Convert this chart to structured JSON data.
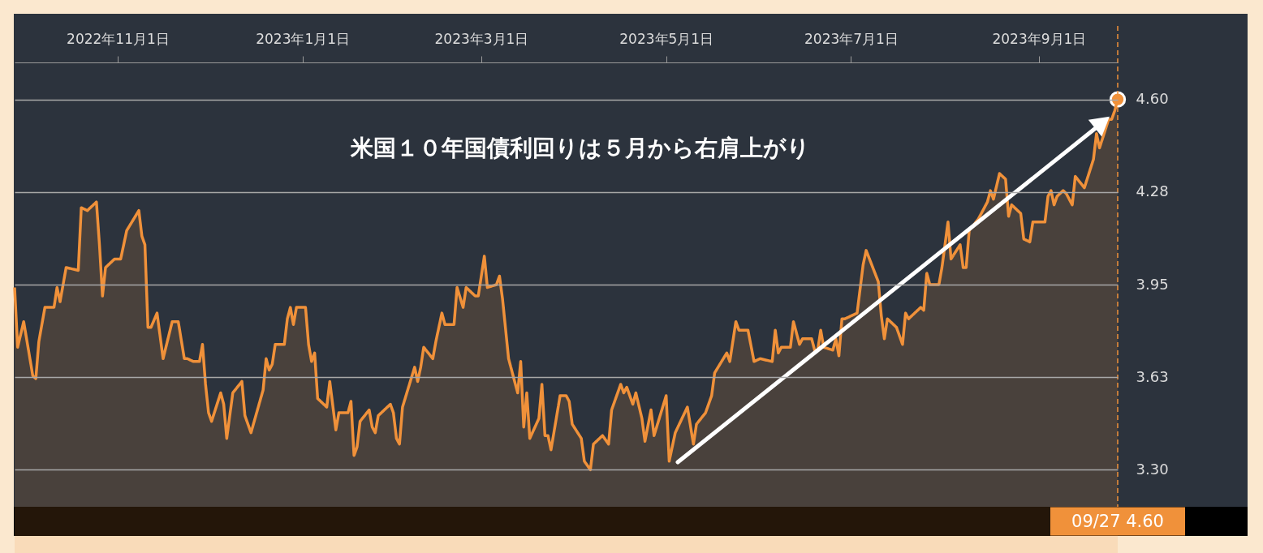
{
  "chart_data": {
    "type": "area",
    "annotations": [
      "米国１０年国債利回りは５月から右肩上がり",
      "09/27 4.60"
    ],
    "x": [
      "2022-09-28",
      "2022-09-29",
      "2022-10-01",
      "2022-10-04",
      "2022-10-05",
      "2022-10-06",
      "2022-10-08",
      "2022-10-11",
      "2022-10-12",
      "2022-10-13",
      "2022-10-15",
      "2022-10-19",
      "2022-10-20",
      "2022-10-22",
      "2022-10-25",
      "2022-10-26",
      "2022-10-27",
      "2022-10-28",
      "2022-10-31",
      "2022-11-02",
      "2022-11-04",
      "2022-11-08",
      "2022-11-09",
      "2022-11-10",
      "2022-11-11",
      "2022-11-12",
      "2022-11-14",
      "2022-11-16",
      "2022-11-19",
      "2022-11-21",
      "2022-11-23",
      "2022-11-24",
      "2022-11-26",
      "2022-11-28",
      "2022-11-29",
      "2022-11-30",
      "2022-12-01",
      "2022-12-02",
      "2022-12-05",
      "2022-12-06",
      "2022-12-07",
      "2022-12-09",
      "2022-12-12",
      "2022-12-13",
      "2022-12-15",
      "2022-12-19",
      "2022-12-20",
      "2022-12-21",
      "2022-12-22",
      "2022-12-23",
      "2022-12-26",
      "2022-12-27",
      "2022-12-28",
      "2022-12-29",
      "2022-12-30",
      "2023-01-02",
      "2023-01-03",
      "2023-01-04",
      "2023-01-05",
      "2023-01-06",
      "2023-01-09",
      "2023-01-10",
      "2023-01-12",
      "2023-01-13",
      "2023-01-16",
      "2023-01-17",
      "2023-01-18",
      "2023-01-19",
      "2023-01-20",
      "2023-01-23",
      "2023-01-24",
      "2023-01-25",
      "2023-01-26",
      "2023-01-30",
      "2023-01-31",
      "2023-02-01",
      "2023-02-02",
      "2023-02-03",
      "2023-02-07",
      "2023-02-08",
      "2023-02-09",
      "2023-02-10",
      "2023-02-13",
      "2023-02-14",
      "2023-02-16",
      "2023-02-17",
      "2023-02-20",
      "2023-02-21",
      "2023-02-23",
      "2023-02-24",
      "2023-02-27",
      "2023-02-28",
      "2023-03-02",
      "2023-03-03",
      "2023-03-06",
      "2023-03-07",
      "2023-03-08",
      "2023-03-10",
      "2023-03-13",
      "2023-03-14",
      "2023-03-15",
      "2023-03-16",
      "2023-03-17",
      "2023-03-20",
      "2023-03-21",
      "2023-03-22",
      "2023-03-23",
      "2023-03-24",
      "2023-03-27",
      "2023-03-29",
      "2023-03-30",
      "2023-03-31",
      "2023-04-03",
      "2023-04-04",
      "2023-04-06",
      "2023-04-07",
      "2023-04-10",
      "2023-04-12",
      "2023-04-13",
      "2023-04-16",
      "2023-04-17",
      "2023-04-18",
      "2023-04-20",
      "2023-04-21",
      "2023-04-23",
      "2023-04-24",
      "2023-04-26",
      "2023-04-27",
      "2023-05-01",
      "2023-05-02",
      "2023-05-04",
      "2023-05-08",
      "2023-05-10",
      "2023-05-11",
      "2023-05-14",
      "2023-05-16",
      "2023-05-17",
      "2023-05-21",
      "2023-05-22",
      "2023-05-24",
      "2023-05-25",
      "2023-05-28",
      "2023-05-30",
      "2023-06-01",
      "2023-06-05",
      "2023-06-06",
      "2023-06-07",
      "2023-06-08",
      "2023-06-11",
      "2023-06-12",
      "2023-06-14",
      "2023-06-15",
      "2023-06-18",
      "2023-06-19",
      "2023-06-20",
      "2023-06-21",
      "2023-06-22",
      "2023-06-25",
      "2023-06-26",
      "2023-06-27",
      "2023-06-28",
      "2023-06-29",
      "2023-07-03",
      "2023-07-05",
      "2023-07-06",
      "2023-07-10",
      "2023-07-11",
      "2023-07-12",
      "2023-07-13",
      "2023-07-16",
      "2023-07-18",
      "2023-07-19",
      "2023-07-20",
      "2023-07-24",
      "2023-07-25",
      "2023-07-26",
      "2023-07-27",
      "2023-07-30",
      "2023-07-31",
      "2023-08-02",
      "2023-08-03",
      "2023-08-06",
      "2023-08-07",
      "2023-08-08",
      "2023-08-09",
      "2023-08-12",
      "2023-08-15",
      "2023-08-16",
      "2023-08-17",
      "2023-08-19",
      "2023-08-21",
      "2023-08-22",
      "2023-08-23",
      "2023-08-26",
      "2023-08-27",
      "2023-08-29",
      "2023-08-30",
      "2023-09-03",
      "2023-09-04",
      "2023-09-05",
      "2023-09-06",
      "2023-09-07",
      "2023-09-09",
      "2023-09-10",
      "2023-09-12",
      "2023-09-13",
      "2023-09-16",
      "2023-09-19",
      "2023-09-20",
      "2023-09-21",
      "2023-09-24",
      "2023-09-25",
      "2023-09-26",
      "2023-09-27"
    ],
    "series": [
      {
        "color": "#f0913a",
        "values": [
          3.94,
          3.73,
          3.82,
          3.63,
          3.62,
          3.75,
          3.87,
          3.87,
          3.94,
          3.89,
          4.01,
          4.0,
          4.22,
          4.21,
          4.24,
          4.09,
          3.91,
          4.01,
          4.04,
          4.04,
          4.14,
          4.21,
          4.12,
          4.09,
          3.8,
          3.8,
          3.85,
          3.69,
          3.82,
          3.82,
          3.69,
          3.69,
          3.68,
          3.68,
          3.74,
          3.6,
          3.5,
          3.47,
          3.57,
          3.53,
          3.41,
          3.57,
          3.61,
          3.49,
          3.43,
          3.58,
          3.69,
          3.65,
          3.67,
          3.74,
          3.74,
          3.83,
          3.87,
          3.81,
          3.87,
          3.87,
          3.74,
          3.68,
          3.71,
          3.55,
          3.52,
          3.61,
          3.44,
          3.5,
          3.5,
          3.54,
          3.35,
          3.38,
          3.47,
          3.51,
          3.45,
          3.43,
          3.49,
          3.53,
          3.5,
          3.41,
          3.39,
          3.52,
          3.66,
          3.61,
          3.66,
          3.73,
          3.69,
          3.75,
          3.85,
          3.81,
          3.81,
          3.94,
          3.87,
          3.94,
          3.91,
          3.91,
          4.05,
          3.94,
          3.95,
          3.98,
          3.9,
          3.69,
          3.57,
          3.68,
          3.45,
          3.57,
          3.41,
          3.48,
          3.6,
          3.42,
          3.42,
          3.37,
          3.56,
          3.56,
          3.54,
          3.46,
          3.41,
          3.33,
          3.3,
          3.39,
          3.42,
          3.39,
          3.51,
          3.6,
          3.57,
          3.59,
          3.53,
          3.57,
          3.48,
          3.4,
          3.51,
          3.42,
          3.56,
          3.33,
          3.43,
          3.52,
          3.39,
          3.46,
          3.5,
          3.56,
          3.64,
          3.71,
          3.68,
          3.82,
          3.79,
          3.79,
          3.68,
          3.69,
          3.68,
          3.79,
          3.71,
          3.73,
          3.73,
          3.82,
          3.74,
          3.76,
          3.76,
          3.72,
          3.72,
          3.79,
          3.73,
          3.72,
          3.76,
          3.7,
          3.83,
          3.83,
          3.85,
          4.02,
          4.07,
          3.96,
          3.84,
          3.76,
          3.83,
          3.8,
          3.74,
          3.85,
          3.83,
          3.87,
          3.86,
          3.99,
          3.95,
          3.95,
          4.01,
          4.17,
          4.04,
          4.09,
          4.01,
          4.01,
          4.14,
          4.18,
          4.24,
          4.28,
          4.25,
          4.34,
          4.32,
          4.19,
          4.23,
          4.2,
          4.11,
          4.1,
          4.17,
          4.17,
          4.26,
          4.28,
          4.23,
          4.26,
          4.28,
          4.27,
          4.23,
          4.33,
          4.29,
          4.39,
          4.48,
          4.43,
          4.53,
          4.53,
          4.56,
          4.6
        ]
      }
    ],
    "xlim": [
      "2022-09-28",
      "2023-09-27"
    ],
    "xticks": [
      {
        "value": "2022-11-01",
        "label": "2022年11月1日"
      },
      {
        "value": "2023-01-01",
        "label": "2023年1月1日"
      },
      {
        "value": "2023-03-01",
        "label": "2023年3月1日"
      },
      {
        "value": "2023-05-01",
        "label": "2023年5月1日"
      },
      {
        "value": "2023-07-01",
        "label": "2023年7月1日"
      },
      {
        "value": "2023-09-01",
        "label": "2023年9月1日"
      }
    ],
    "ylim": [
      3.17,
      4.73
    ],
    "yticks": [
      {
        "value": 3.3,
        "label": "3.30"
      },
      {
        "value": 3.625,
        "label": "3.63"
      },
      {
        "value": 3.95,
        "label": "3.95"
      },
      {
        "value": 4.275,
        "label": "4.28"
      },
      {
        "value": 4.6,
        "label": "4.60"
      }
    ],
    "ref_lines": [
      {
        "axis": "x",
        "value": "2023-09-27",
        "color": "#f0913a",
        "line_style": "dashed"
      }
    ],
    "grid": "y",
    "marker": "none",
    "line_style": "solid"
  }
}
